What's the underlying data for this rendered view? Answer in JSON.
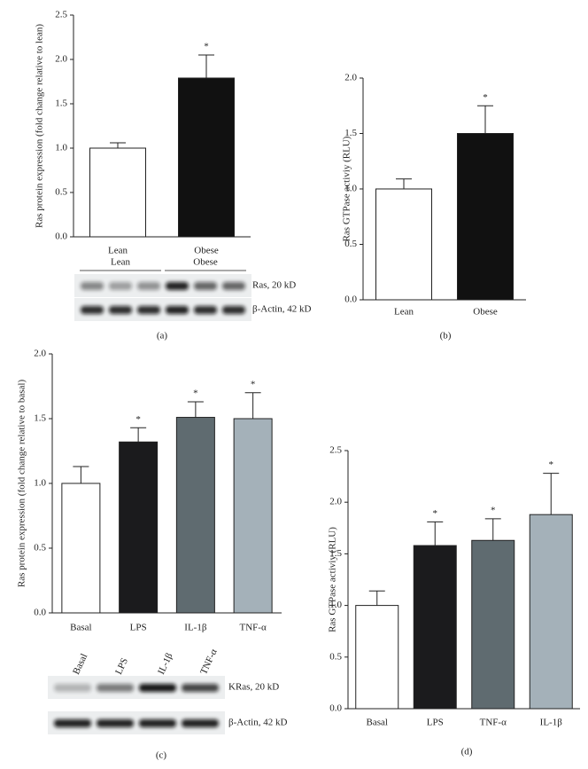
{
  "chart_data": [
    {
      "type": "bar",
      "panel": "(a)",
      "ylabel": "Ras protein expression (fold change relative to lean)",
      "categories": [
        "Lean",
        "Obese"
      ],
      "values": [
        1.0,
        1.79
      ],
      "errors": [
        0.06,
        0.26
      ],
      "colors": [
        "#ffffff",
        "#111111"
      ],
      "annotations": [
        null,
        "*"
      ],
      "ylim": [
        0,
        2.5
      ],
      "yticks": [
        {
          "value": 0,
          "label": "0.0"
        },
        {
          "value": 0.5,
          "label": "0.5"
        },
        {
          "value": 1,
          "label": "1.0"
        },
        {
          "value": 1.5,
          "label": "1.5"
        },
        {
          "value": 2,
          "label": "2.0"
        },
        {
          "value": 2.5,
          "label": "2.5"
        }
      ],
      "blot": {
        "lanes": [
          "Lean",
          "Obese"
        ],
        "rows": [
          "Ras, 20 kD",
          "β-Actin, 42 kD"
        ]
      }
    },
    {
      "type": "bar",
      "panel": "(b)",
      "ylabel": "Ras GTPase activiy (RLU)",
      "categories": [
        "Lean",
        "Obese"
      ],
      "values": [
        1.0,
        1.5
      ],
      "errors": [
        0.09,
        0.25
      ],
      "colors": [
        "#ffffff",
        "#111111"
      ],
      "annotations": [
        null,
        "*"
      ],
      "ylim": [
        0,
        2.0
      ],
      "yticks": [
        {
          "value": 0,
          "label": "0.0"
        },
        {
          "value": 0.5,
          "label": "0.5"
        },
        {
          "value": 1,
          "label": "1.0"
        },
        {
          "value": 1.5,
          "label": "1.5"
        },
        {
          "value": 2,
          "label": "2.0"
        }
      ]
    },
    {
      "type": "bar",
      "panel": "(c)",
      "ylabel": "Ras protein expression (fold change relative to basal)",
      "categories": [
        "Basal",
        "LPS",
        "IL-1β",
        "TNF-α"
      ],
      "values": [
        1.0,
        1.32,
        1.51,
        1.5
      ],
      "errors": [
        0.13,
        0.11,
        0.12,
        0.2
      ],
      "colors": [
        "#ffffff",
        "#1b1b1d",
        "#5f6b70",
        "#a4b1b9"
      ],
      "annotations": [
        null,
        "*",
        "*",
        "*"
      ],
      "ylim": [
        0,
        2.0
      ],
      "yticks": [
        {
          "value": 0,
          "label": "0.0"
        },
        {
          "value": 0.5,
          "label": "0.5"
        },
        {
          "value": 1,
          "label": "1.0"
        },
        {
          "value": 1.5,
          "label": "1.5"
        },
        {
          "value": 2,
          "label": "2.0"
        }
      ],
      "blot": {
        "lanes": [
          "Basal",
          "LPS",
          "IL-1β",
          "TNF-α"
        ],
        "rows": [
          "KRas, 20 kD",
          "β-Actin, 42 kD"
        ]
      }
    },
    {
      "type": "bar",
      "panel": "(d)",
      "ylabel": "Ras GTPase activiy (RLU)",
      "categories": [
        "Basal",
        "LPS",
        "TNF-α",
        "IL-1β"
      ],
      "values": [
        1.0,
        1.58,
        1.63,
        1.88
      ],
      "errors": [
        0.14,
        0.23,
        0.21,
        0.4
      ],
      "colors": [
        "#ffffff",
        "#1b1b1d",
        "#5f6b70",
        "#a4b1b9"
      ],
      "annotations": [
        null,
        "*",
        "*",
        "*"
      ],
      "ylim": [
        0,
        2.5
      ],
      "yticks": [
        {
          "value": 0,
          "label": "0.0"
        },
        {
          "value": 0.5,
          "label": "0.5"
        },
        {
          "value": 1,
          "label": "1.0"
        },
        {
          "value": 1.5,
          "label": "1.5"
        },
        {
          "value": 2,
          "label": "2.0"
        },
        {
          "value": 2.5,
          "label": "2.5"
        }
      ]
    }
  ]
}
